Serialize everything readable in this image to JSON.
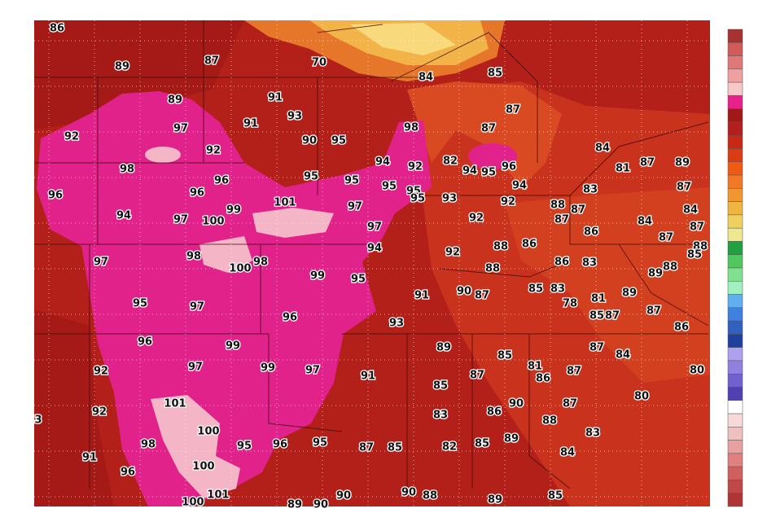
{
  "map": {
    "labels": [
      86,
      89,
      87,
      70,
      84,
      85,
      89,
      91,
      93,
      87,
      92,
      97,
      91,
      98,
      87,
      92,
      90,
      95,
      84,
      98,
      94,
      92,
      82,
      94,
      95,
      96,
      81,
      87,
      89,
      96,
      95,
      95,
      95,
      95,
      94,
      83,
      87,
      96,
      96,
      101,
      99,
      97,
      95,
      93,
      92,
      88,
      87,
      84,
      94,
      97,
      100,
      92,
      87,
      86,
      84,
      87,
      97,
      87,
      88,
      85,
      97,
      98,
      100,
      98,
      94,
      92,
      88,
      86,
      86,
      83,
      88,
      89,
      88,
      99,
      95,
      91,
      90,
      87,
      85,
      83,
      81,
      89,
      78,
      95,
      97,
      96,
      87,
      85,
      87,
      93,
      86,
      96,
      99,
      89,
      87,
      84,
      85,
      81,
      92,
      97,
      99,
      97,
      91,
      87,
      86,
      87,
      80,
      85,
      80,
      101,
      90,
      87,
      86,
      92,
      83,
      88,
      3,
      100,
      83,
      98,
      95,
      96,
      95,
      87,
      85,
      82,
      85,
      89,
      84,
      91,
      100,
      96,
      100,
      101,
      89,
      90,
      90,
      90,
      88,
      89,
      85
    ]
  }
}
